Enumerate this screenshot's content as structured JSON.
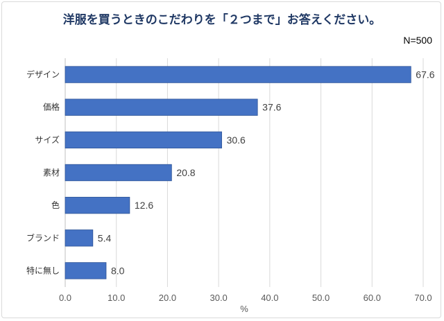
{
  "chart_data": {
    "type": "bar",
    "orientation": "horizontal",
    "title": "洋服を買うときのこだわりを「２つまで」お答えください。",
    "sample_size": "N=500",
    "categories": [
      "デザイン",
      "価格",
      "サイズ",
      "素材",
      "色",
      "ブランド",
      "特に無し"
    ],
    "values": [
      67.6,
      37.6,
      30.6,
      20.8,
      12.6,
      5.4,
      8.0
    ],
    "value_labels": [
      "67.6",
      "37.6",
      "30.6",
      "20.8",
      "12.6",
      "5.4",
      "8.0"
    ],
    "xlabel": "%",
    "xlim": [
      0,
      70
    ],
    "x_ticks": [
      "0.0",
      "10.0",
      "20.0",
      "30.0",
      "40.0",
      "50.0",
      "60.0",
      "70.0"
    ],
    "grid": true,
    "legend": "none",
    "colors": {
      "bar": "#4472c4",
      "bar_edge": "#2f5597",
      "title": "#1f3864",
      "grid": "#d9d9d9"
    }
  }
}
